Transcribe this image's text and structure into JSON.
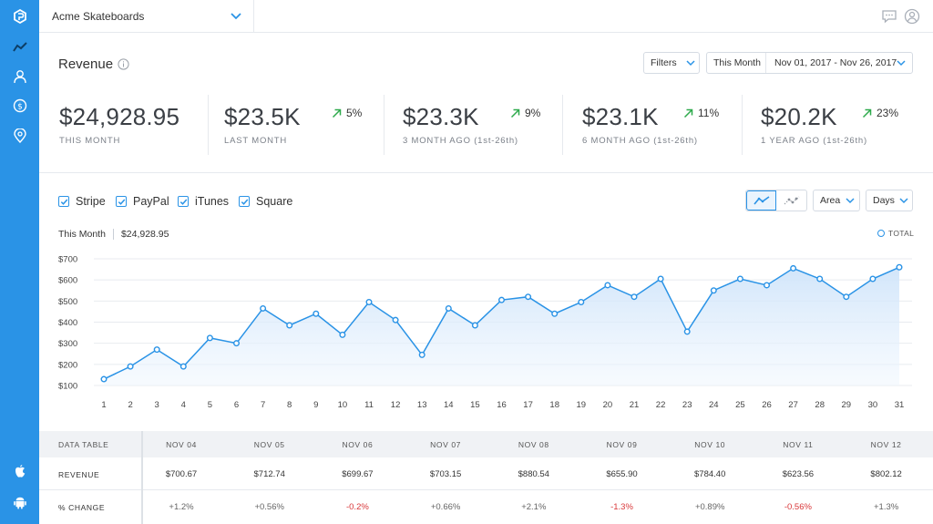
{
  "topbar": {
    "account_name": "Acme Skateboards"
  },
  "header": {
    "title": "Revenue",
    "filters_label": "Filters",
    "period_label": "This Month",
    "date_range": "Nov 01, 2017 - Nov 26, 2017"
  },
  "kpis": [
    {
      "value": "$24,928.95",
      "label": "THIS MONTH",
      "change": ""
    },
    {
      "value": "$23.5K",
      "label": "LAST MONTH",
      "change": "5%"
    },
    {
      "value": "$23.3K",
      "label": "3 MONTH AGO (1st-26th)",
      "change": "9%"
    },
    {
      "value": "$23.1K",
      "label": "6 MONTH AGO (1st-26th)",
      "change": "11%"
    },
    {
      "value": "$20.2K",
      "label": "1 YEAR AGO (1st-26th)",
      "change": "23%"
    }
  ],
  "series_filters": [
    {
      "label": "Stripe",
      "checked": true
    },
    {
      "label": "PayPal",
      "checked": true
    },
    {
      "label": "iTunes",
      "checked": true
    },
    {
      "label": "Square",
      "checked": true
    }
  ],
  "chart_controls": {
    "chart_type_label": "Area",
    "interval_label": "Days"
  },
  "summary": {
    "label": "This Month",
    "value": "$24,928.95",
    "legend_total": "TOTAL"
  },
  "colors": {
    "accent": "#2a93e6",
    "positive": "#2eaa4c",
    "negative": "#d9383a"
  },
  "chart_data": {
    "type": "area",
    "x": [
      1,
      2,
      3,
      4,
      5,
      6,
      7,
      8,
      9,
      10,
      11,
      12,
      13,
      14,
      15,
      16,
      17,
      18,
      19,
      20,
      21,
      22,
      23,
      24,
      25,
      26,
      27,
      28,
      29,
      30,
      31
    ],
    "series": [
      {
        "name": "TOTAL",
        "values": [
          130,
          190,
          270,
          190,
          325,
          300,
          465,
          385,
          440,
          340,
          495,
          410,
          245,
          465,
          385,
          505,
          520,
          440,
          495,
          575,
          520,
          605,
          355,
          550,
          605,
          575,
          655,
          605,
          520,
          605,
          660
        ]
      }
    ],
    "y_ticks": [
      "$100",
      "$200",
      "$300",
      "$400",
      "$500",
      "$600",
      "$700"
    ],
    "ylim": [
      100,
      700
    ],
    "grid": true
  },
  "data_table": {
    "title": "DATA TABLE",
    "columns": [
      "NOV 04",
      "NOV 05",
      "NOV 06",
      "NOV 07",
      "NOV 08",
      "NOV 09",
      "NOV 10",
      "NOV 11",
      "NOV 12"
    ],
    "rows": [
      {
        "label": "REVENUE",
        "cells": [
          "$700.67",
          "$712.74",
          "$699.67",
          "$703.15",
          "$880.54",
          "$655.90",
          "$784.40",
          "$623.56",
          "$802.12"
        ]
      },
      {
        "label": "% CHANGE",
        "cells": [
          "+1.2%",
          "+0.56%",
          "-0.2%",
          "+0.66%",
          "+2.1%",
          "-1.3%",
          "+0.89%",
          "-0.56%",
          "+1.3%"
        ]
      }
    ]
  },
  "icons": {
    "sidebar": [
      "logo-icon",
      "analytics-icon",
      "user-icon",
      "dollar-icon",
      "location-icon",
      "apple-icon",
      "android-icon"
    ],
    "topbar": [
      "chat-icon",
      "profile-icon"
    ]
  }
}
